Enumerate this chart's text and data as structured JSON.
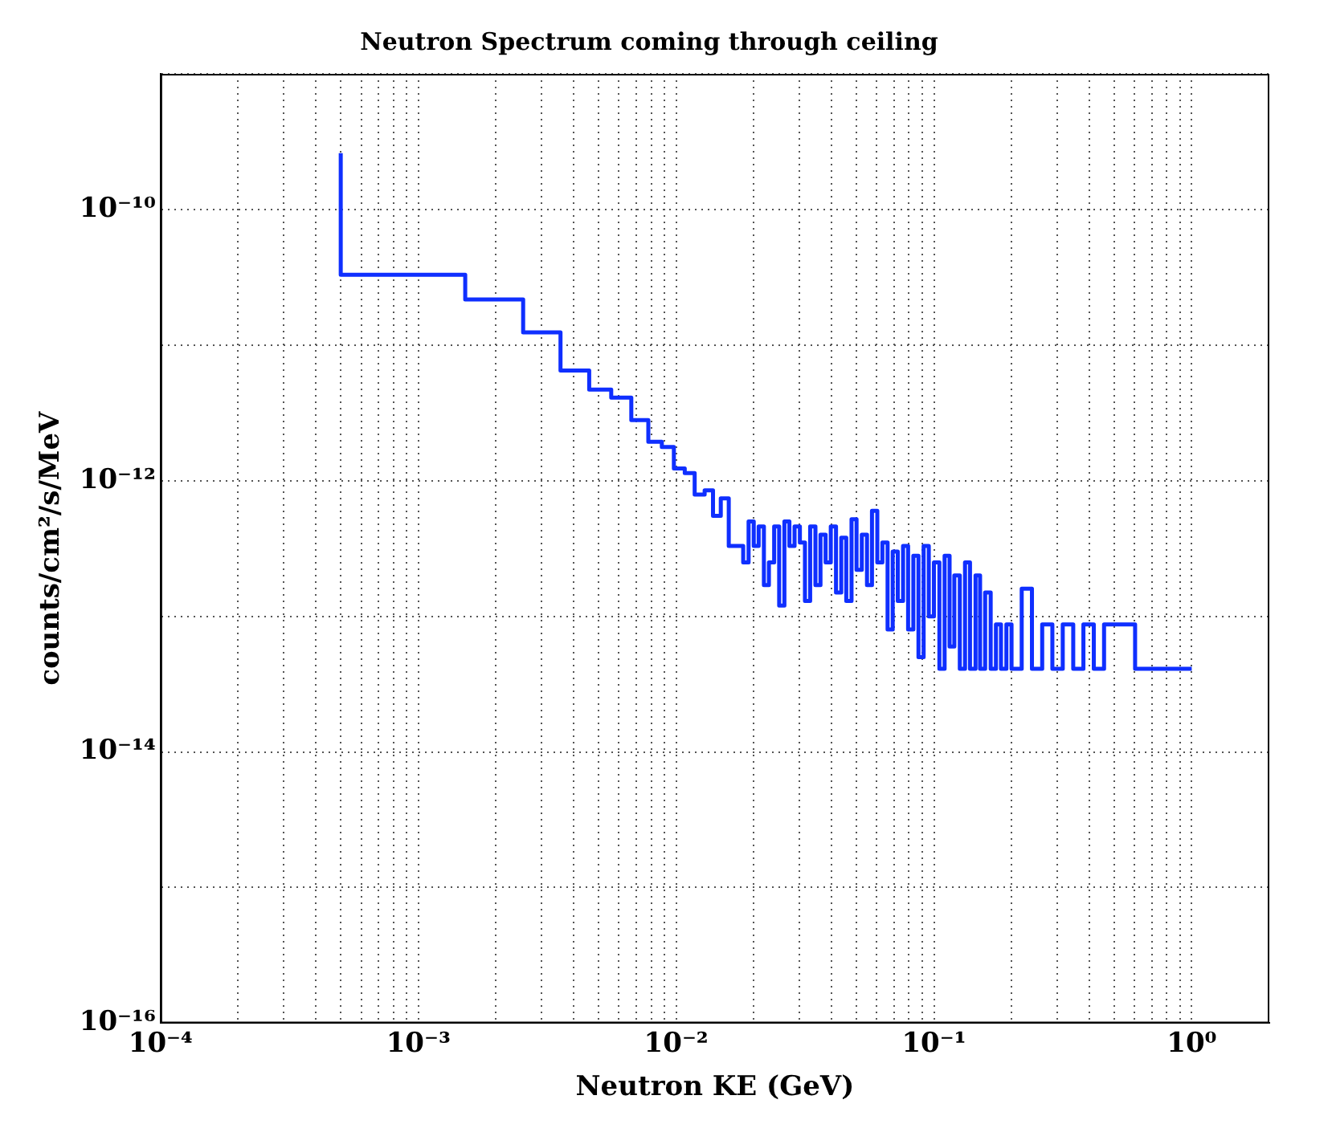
{
  "chart_data": {
    "type": "step",
    "title": "Neutron Spectrum coming through ceiling",
    "xlabel": "Neutron KE (GeV)",
    "ylabel": "counts/cm²/s/MeV",
    "log": "xy",
    "grid": true,
    "legend": false,
    "marker": "none",
    "line_style": "solid",
    "xlim": [
      0.0001,
      2
    ],
    "ylim": [
      1e-16,
      1e-09
    ],
    "xticks": [
      {
        "value": 0.0001,
        "label": "10⁻⁴"
      },
      {
        "value": 0.0002,
        "label": null
      },
      {
        "value": 0.0003,
        "label": null
      },
      {
        "value": 0.0004,
        "label": null
      },
      {
        "value": 0.0005,
        "label": null
      },
      {
        "value": 0.0006,
        "label": null
      },
      {
        "value": 0.0007,
        "label": null
      },
      {
        "value": 0.0008,
        "label": null
      },
      {
        "value": 0.0009,
        "label": null
      },
      {
        "value": 0.001,
        "label": "10⁻³"
      },
      {
        "value": 0.002,
        "label": null
      },
      {
        "value": 0.003,
        "label": null
      },
      {
        "value": 0.004,
        "label": null
      },
      {
        "value": 0.005,
        "label": null
      },
      {
        "value": 0.006,
        "label": null
      },
      {
        "value": 0.007,
        "label": null
      },
      {
        "value": 0.008,
        "label": null
      },
      {
        "value": 0.009,
        "label": null
      },
      {
        "value": 0.01,
        "label": "10⁻²"
      },
      {
        "value": 0.02,
        "label": null
      },
      {
        "value": 0.03,
        "label": null
      },
      {
        "value": 0.04,
        "label": null
      },
      {
        "value": 0.05,
        "label": null
      },
      {
        "value": 0.06,
        "label": null
      },
      {
        "value": 0.07,
        "label": null
      },
      {
        "value": 0.08,
        "label": null
      },
      {
        "value": 0.09,
        "label": null
      },
      {
        "value": 0.1,
        "label": "10⁻¹"
      },
      {
        "value": 0.2,
        "label": null
      },
      {
        "value": 0.3,
        "label": null
      },
      {
        "value": 0.4,
        "label": null
      },
      {
        "value": 0.5,
        "label": null
      },
      {
        "value": 0.6,
        "label": null
      },
      {
        "value": 0.7,
        "label": null
      },
      {
        "value": 0.8,
        "label": null
      },
      {
        "value": 0.9,
        "label": null
      },
      {
        "value": 1,
        "label": "10⁰"
      }
    ],
    "yticks": [
      {
        "value": 1e-16,
        "label": "10⁻¹⁶"
      },
      {
        "value": 1e-15,
        "label": null
      },
      {
        "value": 1e-14,
        "label": "10⁻¹⁴"
      },
      {
        "value": 1e-13,
        "label": null
      },
      {
        "value": 1e-12,
        "label": "10⁻¹²"
      },
      {
        "value": 1e-11,
        "label": null
      },
      {
        "value": 1e-10,
        "label": "10⁻¹⁰"
      },
      {
        "value": 1e-09,
        "label": null
      }
    ],
    "series": [
      {
        "color": "#0f2fff",
        "x": [
          0.0005,
          0.00152,
          0.00255,
          0.00356,
          0.0046,
          0.0056,
          0.0067,
          0.0078,
          0.0088,
          0.0098,
          0.0108,
          0.0118,
          0.0129,
          0.0139,
          0.0149,
          0.016,
          0.0182,
          0.0191,
          0.02,
          0.0209,
          0.0219,
          0.0229,
          0.024,
          0.0251,
          0.0263,
          0.0275,
          0.0288,
          0.0302,
          0.0316,
          0.0331,
          0.0347,
          0.0363,
          0.038,
          0.0398,
          0.0417,
          0.0437,
          0.0457,
          0.0479,
          0.0501,
          0.0525,
          0.055,
          0.0575,
          0.0603,
          0.0631,
          0.0661,
          0.0692,
          0.0724,
          0.0759,
          0.0794,
          0.0832,
          0.0871,
          0.0912,
          0.0955,
          0.1,
          0.105,
          0.11,
          0.115,
          0.12,
          0.126,
          0.132,
          0.138,
          0.145,
          0.151,
          0.158,
          0.166,
          0.174,
          0.182,
          0.191,
          0.2,
          0.219,
          0.24,
          0.263,
          0.288,
          0.316,
          0.347,
          0.38,
          0.417,
          0.457,
          0.603,
          1.0
        ],
        "values": [
          2.6e-10,
          3.3e-11,
          2.17e-11,
          1.24e-11,
          6.5e-12,
          4.7e-12,
          4.1e-12,
          2.8e-12,
          1.94e-12,
          1.77e-12,
          1.23e-12,
          1.14e-12,
          7.9e-13,
          8.5e-13,
          5.5e-13,
          7.4e-13,
          3.3e-13,
          2.5e-13,
          5e-13,
          3.3e-13,
          4.6e-13,
          1.7e-13,
          2.5e-13,
          4.6e-13,
          1.2e-13,
          5e-13,
          3.3e-13,
          4.6e-13,
          3.5e-13,
          1.3e-13,
          4.6e-13,
          1.7e-13,
          4e-13,
          2.5e-13,
          4.6e-13,
          1.5e-13,
          3.8e-13,
          1.3e-13,
          5.2e-13,
          2.2e-13,
          4e-13,
          1.7e-13,
          6e-13,
          2.5e-13,
          3.5e-13,
          8e-14,
          3e-13,
          1.3e-13,
          3.3e-13,
          8e-14,
          2.8e-13,
          5e-14,
          3.3e-13,
          1e-13,
          2.5e-13,
          4.1e-14,
          2.8e-13,
          6e-14,
          2e-13,
          4.1e-14,
          2.5e-13,
          4.1e-14,
          2e-13,
          4.1e-14,
          1.5e-13,
          4.1e-14,
          8.7e-14,
          4.1e-14,
          8.7e-14,
          4.1e-14,
          1.6e-13,
          4.1e-14,
          8.7e-14,
          4.1e-14,
          8.7e-14,
          4.1e-14,
          8.7e-14,
          4.1e-14,
          8.7e-14,
          4.1e-14
        ]
      }
    ]
  }
}
